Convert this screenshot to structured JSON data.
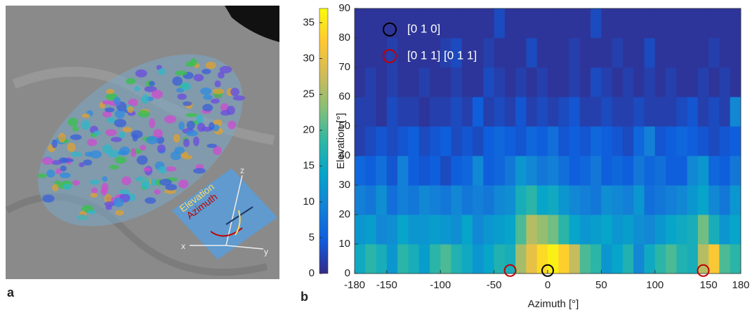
{
  "panel_a": {
    "label": "a",
    "inset_labels": [
      "Elevation",
      "Azimuth",
      "x",
      "y",
      "z"
    ]
  },
  "chart_data": {
    "type": "heatmap",
    "panel_label": "b",
    "x_label": "Azimuth [°]",
    "y_label": "Elevation [°]",
    "xbins": [
      -180,
      -170,
      -160,
      -150,
      -140,
      -130,
      -120,
      -110,
      -100,
      -90,
      -80,
      -70,
      -60,
      -50,
      -40,
      -30,
      -20,
      -10,
      0,
      10,
      20,
      30,
      40,
      50,
      60,
      70,
      80,
      90,
      100,
      110,
      120,
      130,
      140,
      150,
      160,
      170,
      180
    ],
    "ybins": [
      0,
      10,
      20,
      30,
      40,
      50,
      60,
      70,
      80,
      90
    ],
    "z": [
      [
        15,
        18,
        16,
        12,
        18,
        16,
        13,
        18,
        20,
        17,
        15,
        12,
        14,
        17,
        16,
        25,
        30,
        34,
        36,
        33,
        27,
        20,
        18,
        12,
        14,
        17,
        10,
        15,
        18,
        20,
        17,
        16,
        26,
        32,
        20,
        18
      ],
      [
        12,
        13,
        10,
        11,
        14,
        12,
        12,
        13,
        12,
        11,
        14,
        10,
        12,
        13,
        14,
        20,
        26,
        24,
        22,
        18,
        14,
        12,
        13,
        14,
        12,
        13,
        11,
        10,
        12,
        14,
        15,
        16,
        22,
        16,
        12,
        14
      ],
      [
        9,
        8,
        11,
        7,
        9,
        8,
        10,
        9,
        8,
        10,
        8,
        9,
        8,
        10,
        11,
        16,
        18,
        14,
        15,
        12,
        10,
        9,
        8,
        11,
        10,
        9,
        12,
        7,
        8,
        9,
        10,
        12,
        14,
        10,
        8,
        12
      ],
      [
        6,
        5,
        7,
        4,
        9,
        5,
        4,
        5,
        3,
        5,
        6,
        10,
        5,
        6,
        8,
        12,
        10,
        8,
        9,
        7,
        5,
        6,
        8,
        5,
        6,
        5,
        8,
        6,
        7,
        5,
        5,
        10,
        12,
        6,
        5,
        8
      ],
      [
        2,
        3,
        4,
        3,
        4,
        5,
        3,
        4,
        5,
        3,
        4,
        3,
        5,
        6,
        5,
        4,
        6,
        5,
        7,
        4,
        5,
        4,
        6,
        5,
        4,
        3,
        6,
        9,
        4,
        5,
        6,
        5,
        4,
        3,
        4,
        5
      ],
      [
        2,
        2,
        1,
        3,
        2,
        2,
        1,
        2,
        2,
        3,
        2,
        5,
        2,
        3,
        2,
        4,
        2,
        3,
        2,
        3,
        4,
        2,
        2,
        3,
        2,
        2,
        3,
        2,
        2,
        2,
        3,
        4,
        2,
        3,
        2,
        10
      ],
      [
        1,
        2,
        1,
        2,
        1,
        1,
        2,
        1,
        1,
        2,
        1,
        1,
        3,
        2,
        1,
        2,
        1,
        2,
        1,
        1,
        2,
        1,
        3,
        2,
        1,
        2,
        1,
        2,
        1,
        2,
        1,
        1,
        2,
        1,
        2,
        1
      ],
      [
        1,
        1,
        1,
        2,
        1,
        1,
        1,
        1,
        2,
        3,
        1,
        1,
        2,
        1,
        1,
        1,
        3,
        1,
        1,
        1,
        2,
        1,
        1,
        1,
        2,
        1,
        1,
        3,
        1,
        1,
        1,
        1,
        1,
        2,
        1,
        1
      ],
      [
        1,
        1,
        1,
        1,
        1,
        1,
        1,
        1,
        1,
        1,
        1,
        1,
        1,
        3,
        1,
        1,
        1,
        1,
        1,
        1,
        1,
        1,
        3,
        1,
        1,
        1,
        1,
        1,
        1,
        1,
        1,
        1,
        1,
        1,
        1,
        1
      ]
    ],
    "xlim": [
      -180,
      180
    ],
    "ylim": [
      0,
      90
    ],
    "xticks": [
      -180,
      -150,
      -100,
      -50,
      0,
      50,
      100,
      150,
      180
    ],
    "yticks": [
      0,
      10,
      20,
      30,
      40,
      50,
      60,
      70,
      80,
      90
    ],
    "clim": [
      0,
      37
    ],
    "colorbar_ticks": [
      0,
      5,
      10,
      15,
      20,
      25,
      30,
      35
    ],
    "colormap": [
      "#352a87",
      "#0f5cdd",
      "#1481d6",
      "#06a4ca",
      "#2eb7a4",
      "#87bf77",
      "#d1bb59",
      "#fec832",
      "#f9fb0e"
    ],
    "markers": [
      {
        "name": "[0 1 0]",
        "color": "#000000",
        "x": [
          0
        ],
        "y": [
          1
        ]
      },
      {
        "name": "[0 1 1] [0 1 1]",
        "color": "#c00000",
        "x": [
          -35,
          145
        ],
        "y": [
          1,
          1
        ]
      }
    ]
  }
}
